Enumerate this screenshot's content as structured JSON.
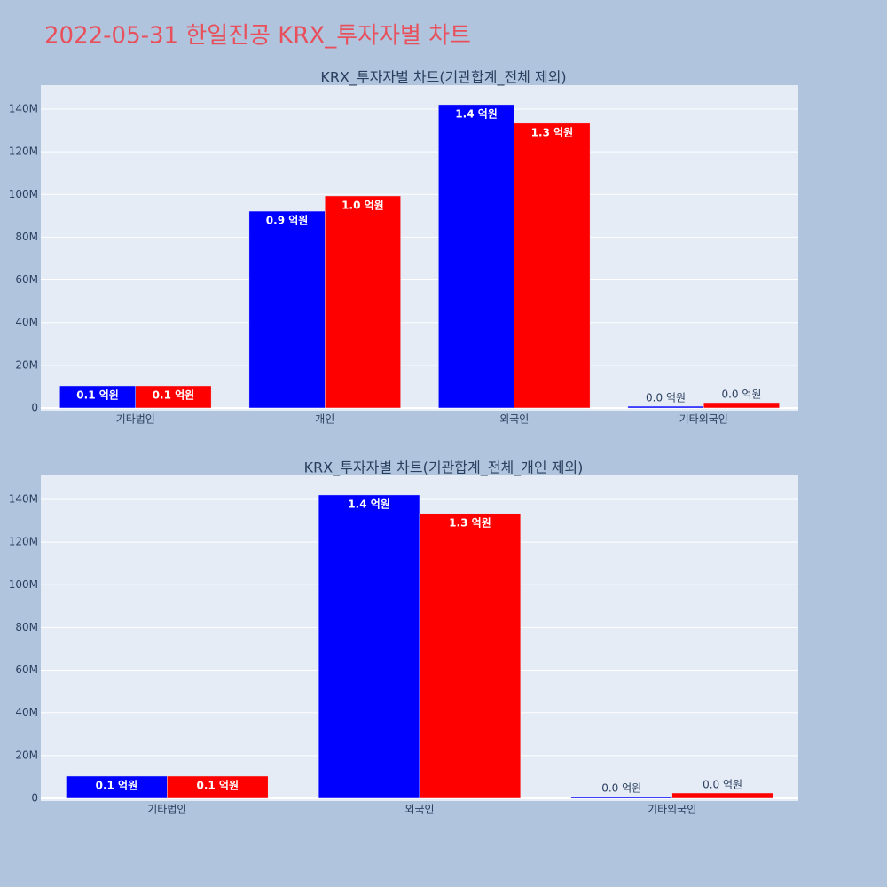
{
  "title": "2022-05-31 한일진공 KRX_투자자별 차트",
  "chart_data": [
    {
      "type": "bar",
      "title": "KRX_투자자별 차트(기관합계_전체 제외)",
      "categories": [
        "기타법인",
        "개인",
        "외국인",
        "기타외국인"
      ],
      "series": [
        {
          "color": "#0000ff",
          "values": [
            10400000,
            92200000,
            142100000,
            800000
          ],
          "value_labels": [
            "0.1 억원",
            "0.9 억원",
            "1.4 억원",
            "0.0 억원"
          ]
        },
        {
          "color": "#ff0000",
          "values": [
            10400000,
            99300000,
            133400000,
            2500000
          ],
          "value_labels": [
            "0.1 억원",
            "1.0 억원",
            "1.3 억원",
            "0.0 억원"
          ]
        }
      ],
      "ylim": [
        -1250000,
        151200000
      ],
      "yticks": [
        0,
        {
          "value": 20000000,
          "label": "20M"
        },
        {
          "value": 40000000,
          "label": "40M"
        },
        {
          "value": 60000000,
          "label": "60M"
        },
        {
          "value": 80000000,
          "label": "80M"
        },
        {
          "value": 100000000,
          "label": "100M"
        },
        {
          "value": 120000000,
          "label": "120M"
        },
        {
          "value": 140000000,
          "label": "140M"
        }
      ],
      "grid": true
    },
    {
      "type": "bar",
      "title": "KRX_투자자별 차트(기관합계_전체_개인 제외)",
      "categories": [
        "기타법인",
        "외국인",
        "기타외국인"
      ],
      "series": [
        {
          "color": "#0000ff",
          "values": [
            10400000,
            142100000,
            800000
          ],
          "value_labels": [
            "0.1 억원",
            "1.4 억원",
            "0.0 억원"
          ]
        },
        {
          "color": "#ff0000",
          "values": [
            10400000,
            133400000,
            2500000
          ],
          "value_labels": [
            "0.1 억원",
            "1.3 억원",
            "0.0 억원"
          ]
        }
      ],
      "ylim": [
        -1250000,
        151200000
      ],
      "yticks": [
        0,
        {
          "value": 20000000,
          "label": "20M"
        },
        {
          "value": 40000000,
          "label": "40M"
        },
        {
          "value": 60000000,
          "label": "60M"
        },
        {
          "value": 80000000,
          "label": "80M"
        },
        {
          "value": 100000000,
          "label": "100M"
        },
        {
          "value": 120000000,
          "label": "120M"
        },
        {
          "value": 140000000,
          "label": "140M"
        }
      ],
      "grid": true
    }
  ]
}
